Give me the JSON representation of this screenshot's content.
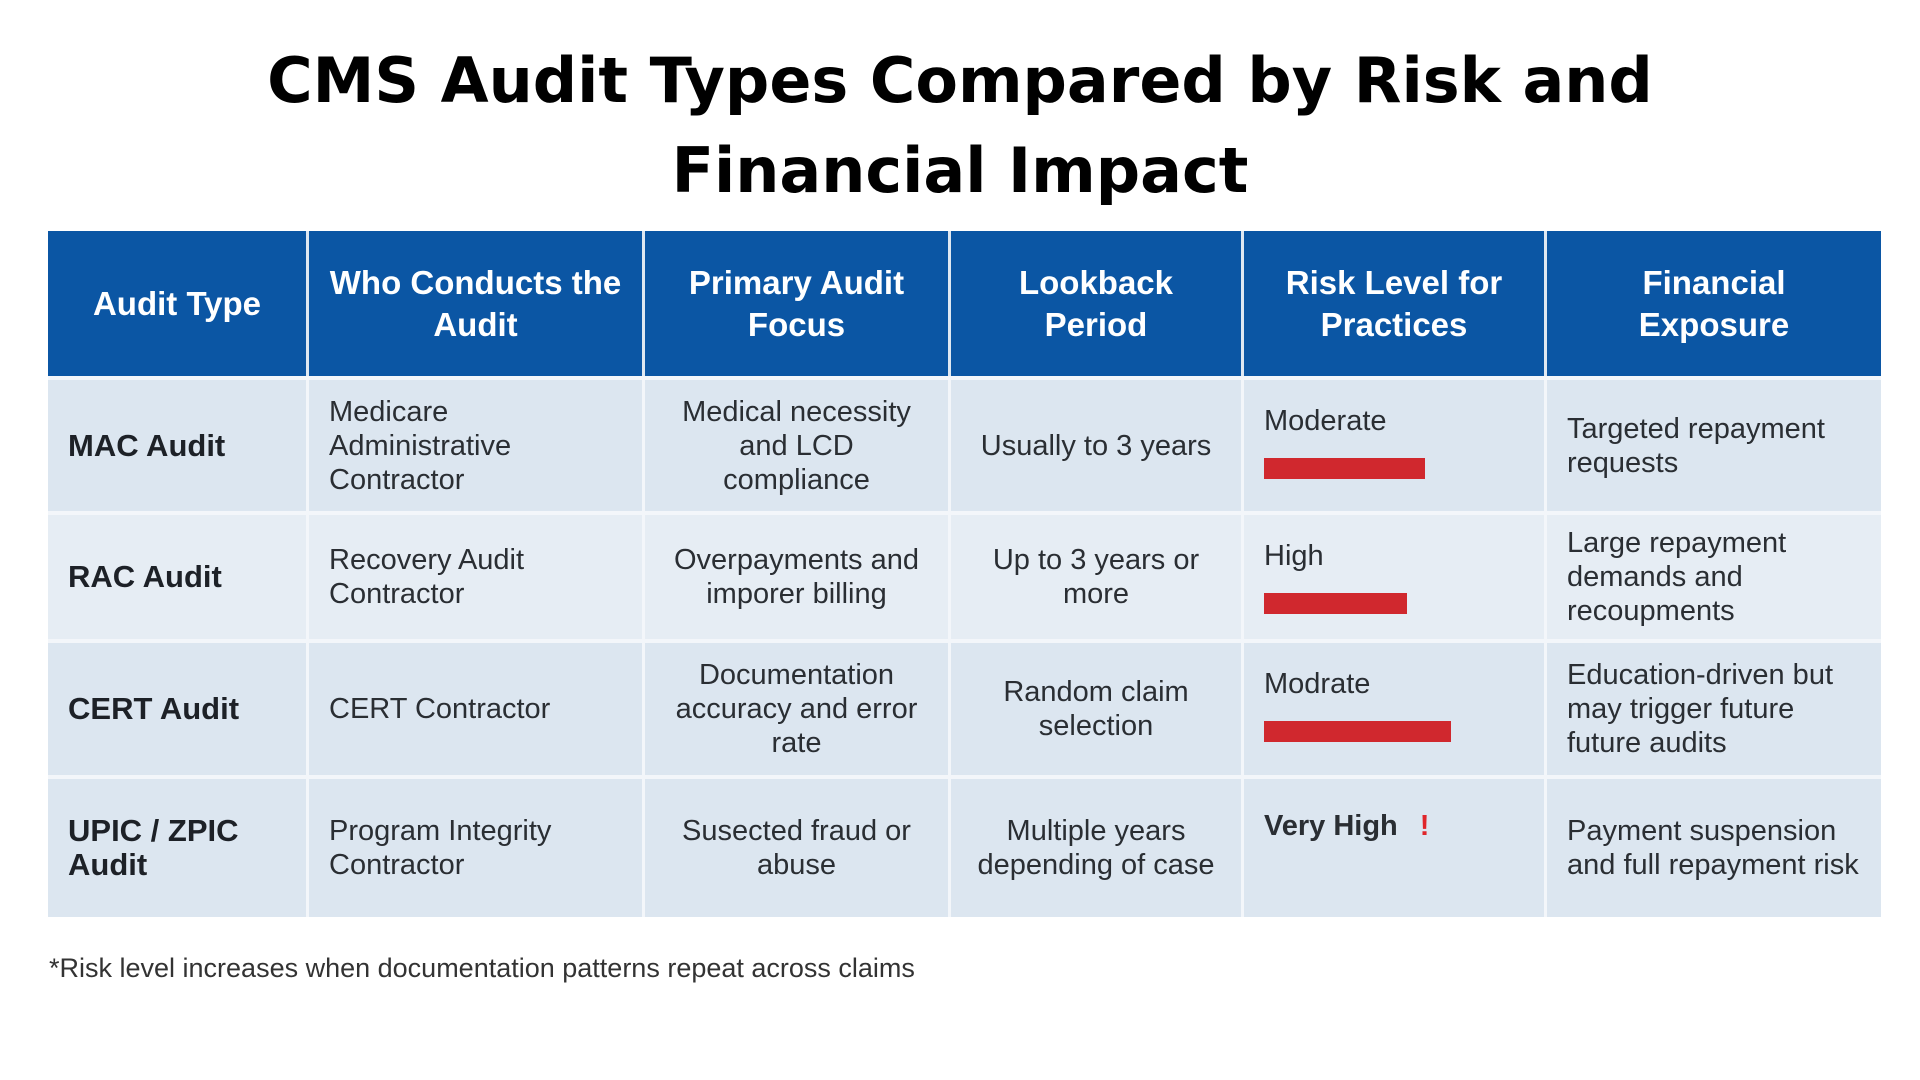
{
  "title_line1": "CMS Audit Types Compared by Risk and",
  "title_line2": "Financial Impact",
  "colors": {
    "header": "#0b56a4",
    "risk_bar": "#d0282e",
    "row_bg": "#dce6f0"
  },
  "headers": [
    "Audit Type",
    "Who Conducts the Audit",
    "Primary Audit Focus",
    "Lookback Period",
    "Risk Level for Practices",
    "Financial Exposure"
  ],
  "rows": [
    {
      "type": "MAC Audit",
      "who": "Medicare Administrative Contractor",
      "focus": "Medical necessity and LCD compliance",
      "lookback": "Usually to 3 years",
      "risk": "Moderate",
      "risk_bar_level": 0.62,
      "exposure": "Targeted repayment requests"
    },
    {
      "type": "RAC Audit",
      "who": "Recovery Audit Contractor",
      "focus": "Overpayments and imporer billing",
      "lookback": "Up to 3 years or more",
      "risk": "High",
      "risk_bar_level": 0.55,
      "exposure": "Large repayment demands and recoupments"
    },
    {
      "type": "CERT Audit",
      "who": "CERT Contractor",
      "focus": "Documentation accuracy and error rate",
      "lookback": "Random claim selection",
      "risk": "Modrate",
      "risk_bar_level": 0.72,
      "exposure": "Education-driven but may trigger future future audits"
    },
    {
      "type": "UPIC / ZPIC Audit",
      "who": "Program Integrity Contractor",
      "focus": "Susected fraud or abuse",
      "lookback": "Multiple years depending of case",
      "risk": "Very High",
      "risk_icon": "exclamation-icon",
      "risk_mark": "!",
      "exposure": "Payment suspension and full repayment risk"
    }
  ],
  "footnote": "*Risk level increases when documentation patterns repeat across claims"
}
